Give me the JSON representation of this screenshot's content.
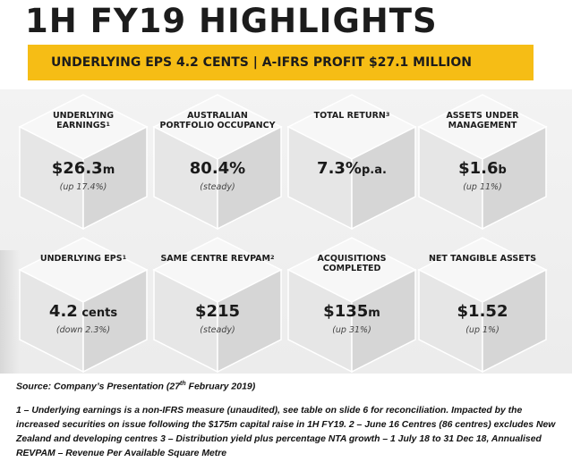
{
  "page": {
    "title": "1H FY19 HIGHLIGHTS",
    "banner": "UNDERLYING EPS 4.2 CENTS | A-IFRS PROFIT $27.1 MILLION"
  },
  "cubes": [
    {
      "label": "UNDERLYING EARNINGS",
      "sup": "1",
      "value": "$26.3",
      "unit": "m",
      "note": "(up 17.4%)"
    },
    {
      "label": "AUSTRALIAN PORTFOLIO OCCUPANCY",
      "sup": "",
      "value": "80.4%",
      "unit": "",
      "note": "(steady)"
    },
    {
      "label": "TOTAL RETURN",
      "sup": "3",
      "value": "7.3%",
      "unit": "p.a.",
      "note": ""
    },
    {
      "label": "ASSETS UNDER MANAGEMENT",
      "sup": "",
      "value": "$1.6",
      "unit": "b",
      "note": "(up 11%)"
    },
    {
      "label": "UNDERLYING EPS",
      "sup": "1",
      "value": "4.2",
      "unit": " cents",
      "note": "(down 2.3%)"
    },
    {
      "label": "SAME CENTRE REVPAM",
      "sup": "2",
      "value": "$215",
      "unit": "",
      "note": "(steady)"
    },
    {
      "label": "ACQUISITIONS COMPLETED",
      "sup": "",
      "value": "$135",
      "unit": "m",
      "note": "(up 31%)"
    },
    {
      "label": "NET TANGIBLE ASSETS",
      "sup": "",
      "value": "$1.52",
      "unit": "",
      "note": "(up 1%)"
    }
  ],
  "source": {
    "prefix": "Source: Company’s Presentation (27",
    "sup": "th",
    "suffix": " February 2019)"
  },
  "footnote": "1 – Underlying earnings is a non-IFRS measure (unaudited), see table on slide 6 for reconciliation. Impacted by the increased securities on issue following the $175m capital raise in 1H FY19. 2 – June 16 Centres (86 centres) excludes New Zealand and developing centres 3 – Distribution yield plus percentage NTA growth – 1 July 18 to 31 Dec 18, Annualised REVPAM – Revenue Per Available Square Metre",
  "colors": {
    "banner": "#f6bd15",
    "cube_top": "#f7f7f7",
    "cube_left": "#e6e6e6",
    "cube_right": "#d6d6d6"
  }
}
